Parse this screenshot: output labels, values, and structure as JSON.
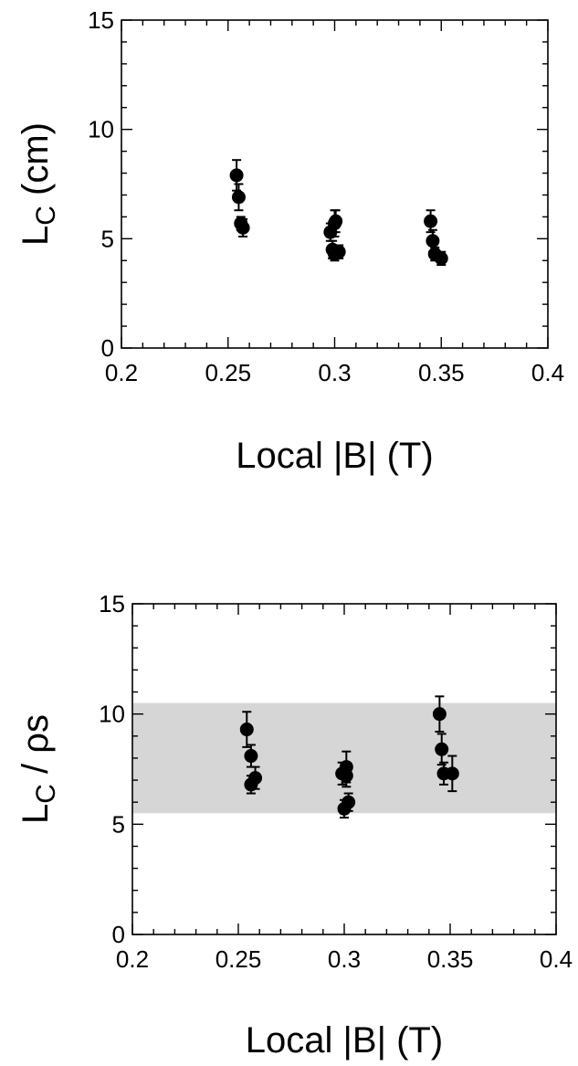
{
  "chart_data": [
    {
      "type": "scatter",
      "xlabel": "Local |B| (T)",
      "ylabel_main": "L",
      "ylabel_sub": "C",
      "ylabel_rest": " (cm)",
      "xlim": [
        0.2,
        0.4
      ],
      "ylim": [
        0,
        15
      ],
      "xticks": [
        "0.2",
        "0.25",
        "0.3",
        "0.35",
        "0.4"
      ],
      "yticks": [
        "0",
        "5",
        "10",
        "15"
      ],
      "grid": false,
      "band": null,
      "points": [
        {
          "x": 0.254,
          "y": 7.9,
          "err": 0.7
        },
        {
          "x": 0.255,
          "y": 6.9,
          "err": 0.6
        },
        {
          "x": 0.256,
          "y": 5.7,
          "err": 0.3
        },
        {
          "x": 0.257,
          "y": 5.5,
          "err": 0.4
        },
        {
          "x": 0.298,
          "y": 5.3,
          "err": 0.4
        },
        {
          "x": 0.299,
          "y": 4.5,
          "err": 0.4
        },
        {
          "x": 0.3,
          "y": 5.7,
          "err": 0.6
        },
        {
          "x": 0.3005,
          "y": 5.8,
          "err": 0.5
        },
        {
          "x": 0.3,
          "y": 4.3,
          "err": 0.3
        },
        {
          "x": 0.302,
          "y": 4.4,
          "err": 0.3
        },
        {
          "x": 0.345,
          "y": 5.8,
          "err": 0.5
        },
        {
          "x": 0.346,
          "y": 4.9,
          "err": 0.5
        },
        {
          "x": 0.347,
          "y": 4.3,
          "err": 0.3
        },
        {
          "x": 0.35,
          "y": 4.1,
          "err": 0.3
        }
      ]
    },
    {
      "type": "scatter",
      "xlabel": "Local |B| (T)",
      "ylabel_main": "L",
      "ylabel_sub": "C",
      "ylabel_rest": " / ρs",
      "xlim": [
        0.2,
        0.4
      ],
      "ylim": [
        0,
        15
      ],
      "xticks": [
        "0.2",
        "0.25",
        "0.3",
        "0.35",
        "0.4"
      ],
      "yticks": [
        "0",
        "5",
        "10",
        "15"
      ],
      "grid": false,
      "band": {
        "y0": 5.5,
        "y1": 10.5,
        "color": "#d6d6d6"
      },
      "points": [
        {
          "x": 0.254,
          "y": 9.3,
          "err": 0.8
        },
        {
          "x": 0.256,
          "y": 8.1,
          "err": 0.5
        },
        {
          "x": 0.256,
          "y": 6.8,
          "err": 0.4
        },
        {
          "x": 0.258,
          "y": 7.1,
          "err": 0.5
        },
        {
          "x": 0.299,
          "y": 7.3,
          "err": 0.5
        },
        {
          "x": 0.3,
          "y": 5.7,
          "err": 0.4
        },
        {
          "x": 0.301,
          "y": 7.6,
          "err": 0.7
        },
        {
          "x": 0.301,
          "y": 7.2,
          "err": 0.5
        },
        {
          "x": 0.302,
          "y": 6.0,
          "err": 0.4
        },
        {
          "x": 0.345,
          "y": 10.0,
          "err": 0.8
        },
        {
          "x": 0.346,
          "y": 8.4,
          "err": 0.7
        },
        {
          "x": 0.347,
          "y": 7.3,
          "err": 0.5
        },
        {
          "x": 0.351,
          "y": 7.3,
          "err": 0.8
        }
      ]
    }
  ]
}
